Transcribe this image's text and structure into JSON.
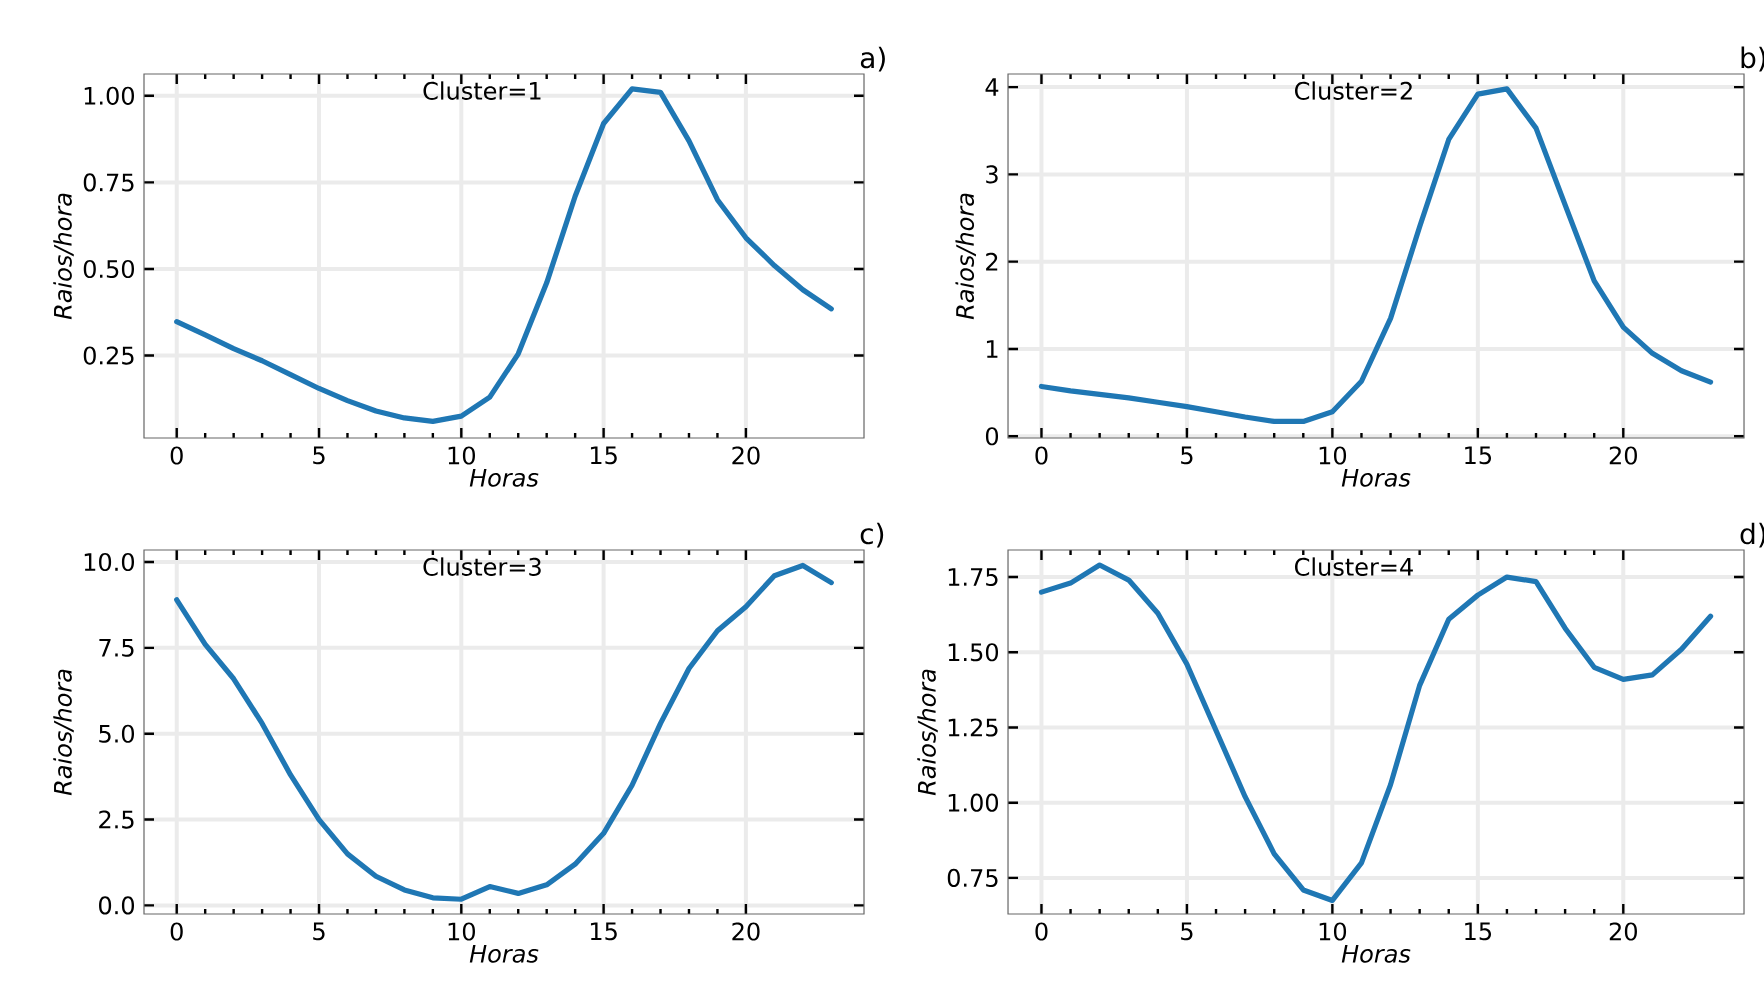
{
  "chart_data": [
    {
      "type": "line",
      "title": "Cluster=1",
      "annotations": [
        "a)"
      ],
      "xlabel": "Horas",
      "ylabel": "Raios/hora",
      "color": "#1f77b4",
      "grid": true,
      "x": [
        0,
        1,
        2,
        3,
        4,
        5,
        6,
        7,
        8,
        9,
        10,
        11,
        12,
        13,
        14,
        15,
        16,
        17,
        18,
        19,
        20,
        21,
        22,
        23
      ],
      "values": [
        0.348,
        0.31,
        0.27,
        0.235,
        0.195,
        0.155,
        0.12,
        0.09,
        0.07,
        0.06,
        0.075,
        0.13,
        0.255,
        0.46,
        0.71,
        0.92,
        1.02,
        1.01,
        0.87,
        0.7,
        0.59,
        0.51,
        0.44,
        0.385
      ],
      "xlim": [
        -1.15,
        24.15
      ],
      "xticks": [
        0,
        5,
        10,
        15,
        20
      ],
      "ylim": [
        0.012,
        1.063
      ],
      "yticks": [
        {
          "value": 0.25,
          "label": "0.25"
        },
        {
          "value": 0.5,
          "label": "0.50"
        },
        {
          "value": 0.75,
          "label": "0.75"
        },
        {
          "value": 1.0,
          "label": "1.00"
        }
      ]
    },
    {
      "type": "line",
      "title": "Cluster=2",
      "annotations": [
        "b)"
      ],
      "xlabel": "Horas",
      "ylabel": "Raios/hora",
      "color": "#1f77b4",
      "grid": true,
      "x": [
        0,
        1,
        2,
        3,
        4,
        5,
        6,
        7,
        8,
        9,
        10,
        11,
        12,
        13,
        14,
        15,
        16,
        17,
        18,
        19,
        20,
        21,
        22,
        23
      ],
      "values": [
        0.57,
        0.52,
        0.48,
        0.44,
        0.39,
        0.34,
        0.28,
        0.22,
        0.17,
        0.17,
        0.28,
        0.63,
        1.35,
        2.4,
        3.4,
        3.92,
        3.98,
        3.53,
        2.65,
        1.78,
        1.25,
        0.95,
        0.75,
        0.62
      ],
      "xlim": [
        -1.15,
        24.15
      ],
      "xticks": [
        0,
        5,
        10,
        15,
        20
      ],
      "ylim": [
        -0.02,
        4.15
      ],
      "yticks": [
        0,
        1,
        2,
        3,
        4
      ]
    },
    {
      "type": "line",
      "title": "Cluster=3",
      "annotations": [
        "c)"
      ],
      "xlabel": "Horas",
      "ylabel": "Raios/hora",
      "color": "#1f77b4",
      "grid": true,
      "x": [
        0,
        1,
        2,
        3,
        4,
        5,
        6,
        7,
        8,
        9,
        10,
        11,
        12,
        13,
        14,
        15,
        16,
        17,
        18,
        19,
        20,
        21,
        22,
        23
      ],
      "values": [
        8.9,
        7.6,
        6.6,
        5.3,
        3.8,
        2.5,
        1.5,
        0.85,
        0.45,
        0.22,
        0.18,
        0.55,
        0.35,
        0.6,
        1.2,
        2.1,
        3.5,
        5.3,
        6.9,
        8.0,
        8.7,
        9.6,
        9.9,
        9.4
      ],
      "xlim": [
        -1.15,
        24.15
      ],
      "xticks": [
        0,
        5,
        10,
        15,
        20
      ],
      "ylim": [
        -0.25,
        10.35
      ],
      "yticks": [
        {
          "value": 0,
          "label": "0.0"
        },
        {
          "value": 2.5,
          "label": "2.5"
        },
        {
          "value": 5,
          "label": "5.0"
        },
        {
          "value": 7.5,
          "label": "7.5"
        },
        {
          "value": 10,
          "label": "10.0"
        }
      ]
    },
    {
      "type": "line",
      "title": "Cluster=4",
      "annotations": [
        "d)"
      ],
      "xlabel": "Horas",
      "ylabel": "Raios/hora",
      "color": "#1f77b4",
      "grid": true,
      "x": [
        0,
        1,
        2,
        3,
        4,
        5,
        6,
        7,
        8,
        9,
        10,
        11,
        12,
        13,
        14,
        15,
        16,
        17,
        18,
        19,
        20,
        21,
        22,
        23
      ],
      "values": [
        1.7,
        1.73,
        1.79,
        1.74,
        1.63,
        1.46,
        1.24,
        1.02,
        0.83,
        0.71,
        0.675,
        0.8,
        1.06,
        1.39,
        1.61,
        1.69,
        1.75,
        1.735,
        1.58,
        1.45,
        1.41,
        1.425,
        1.51,
        1.62
      ],
      "xlim": [
        -1.15,
        24.15
      ],
      "xticks": [
        0,
        5,
        10,
        15,
        20
      ],
      "ylim": [
        0.63,
        1.84
      ],
      "yticks": [
        {
          "value": 0.75,
          "label": "0.75"
        },
        {
          "value": 1.0,
          "label": "1.00"
        },
        {
          "value": 1.25,
          "label": "1.25"
        },
        {
          "value": 1.5,
          "label": "1.50"
        },
        {
          "value": 1.75,
          "label": "1.75"
        }
      ]
    }
  ]
}
